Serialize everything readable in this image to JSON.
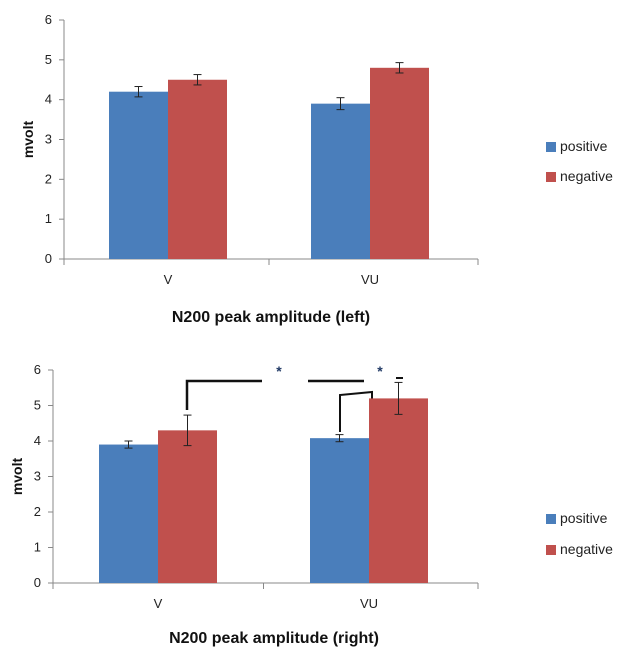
{
  "chart_data": [
    {
      "type": "bar",
      "title": "N200 peak amplitude (left)",
      "xlabel": "",
      "ylabel": "mvolt",
      "ylim": [
        0,
        6
      ],
      "yticks": [
        0,
        1,
        2,
        3,
        4,
        5,
        6
      ],
      "categories": [
        "V",
        "VU"
      ],
      "series": [
        {
          "name": "positive",
          "color": "#4a7ebb",
          "values": [
            4.2,
            3.9
          ],
          "errors": [
            0.13,
            0.15
          ]
        },
        {
          "name": "negative",
          "color": "#c0504d",
          "values": [
            4.5,
            4.8
          ],
          "errors": [
            0.13,
            0.13
          ]
        }
      ],
      "legend": "right",
      "annotations": []
    },
    {
      "type": "bar",
      "title": "N200 peak amplitude (right)",
      "xlabel": "",
      "ylabel": "mvolt",
      "ylim": [
        0,
        6
      ],
      "yticks": [
        0,
        1,
        2,
        3,
        4,
        5,
        6
      ],
      "categories": [
        "V",
        "VU"
      ],
      "series": [
        {
          "name": "positive",
          "color": "#4a7ebb",
          "values": [
            3.9,
            4.08
          ],
          "errors": [
            0.1,
            0.1
          ]
        },
        {
          "name": "negative",
          "color": "#c0504d",
          "values": [
            4.3,
            5.2
          ],
          "errors": [
            0.43,
            0.45
          ]
        }
      ],
      "legend": "right",
      "annotations": [
        "*",
        "*"
      ]
    }
  ]
}
